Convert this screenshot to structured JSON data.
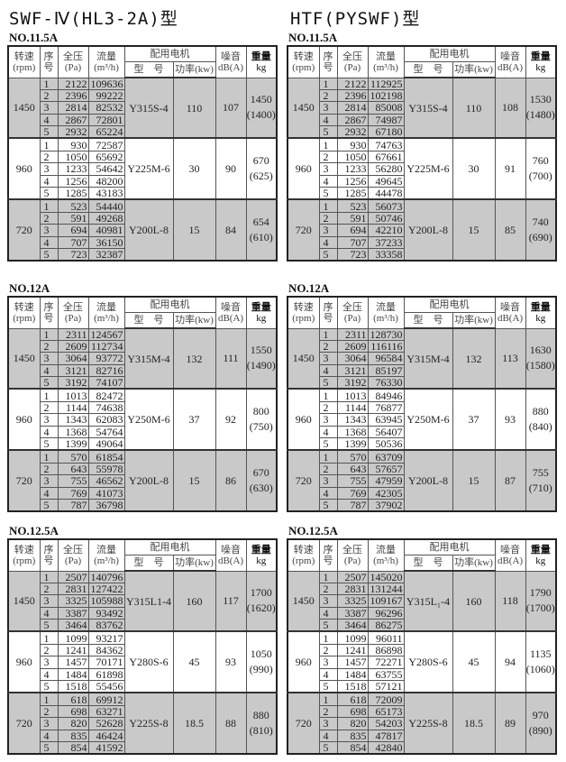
{
  "titles": [
    "SWF-Ⅳ(HL3-2A)型",
    "HTF(PYSWF)型"
  ],
  "header": {
    "speed": [
      "转速",
      "(rpm)"
    ],
    "seq": [
      "序",
      "号"
    ],
    "pressure": [
      "全压",
      "(Pa)"
    ],
    "flow": [
      "流量",
      "(m³/h)"
    ],
    "motor": "配用电机",
    "model": "型　号",
    "power": "功率(kw)",
    "noise": [
      "噪音",
      "dB(A)"
    ],
    "weight": [
      "重量",
      "kg"
    ]
  },
  "tables": [
    {
      "no": "NO.11.5A",
      "groups": [
        {
          "rpm": "1450",
          "model": "Y315S-4",
          "power": "110",
          "noise": "107",
          "weight": "1450",
          "weight_alt": "(1400)",
          "rows": [
            [
              "1",
              "2122",
              "109636"
            ],
            [
              "2",
              "2396",
              "99222"
            ],
            [
              "3",
              "2814",
              "82532"
            ],
            [
              "4",
              "2867",
              "72801"
            ],
            [
              "5",
              "2932",
              "65224"
            ]
          ]
        },
        {
          "rpm": "960",
          "model": "Y225M-6",
          "power": "30",
          "noise": "90",
          "weight": "670",
          "weight_alt": "(625)",
          "rows": [
            [
              "1",
              "930",
              "72587"
            ],
            [
              "2",
              "1050",
              "65692"
            ],
            [
              "3",
              "1233",
              "54642"
            ],
            [
              "4",
              "1256",
              "48200"
            ],
            [
              "5",
              "1285",
              "43183"
            ]
          ]
        },
        {
          "rpm": "720",
          "model": "Y200L-8",
          "power": "15",
          "noise": "84",
          "weight": "654",
          "weight_alt": "(610)",
          "rows": [
            [
              "1",
              "523",
              "54440"
            ],
            [
              "2",
              "591",
              "49268"
            ],
            [
              "3",
              "694",
              "40981"
            ],
            [
              "4",
              "707",
              "36150"
            ],
            [
              "5",
              "723",
              "32387"
            ]
          ]
        }
      ]
    },
    {
      "no": "NO.11.5A",
      "groups": [
        {
          "rpm": "1450",
          "model": "Y315S-4",
          "power": "110",
          "noise": "108",
          "weight": "1530",
          "weight_alt": "(1480)",
          "rows": [
            [
              "1",
              "2122",
              "112925"
            ],
            [
              "2",
              "2396",
              "102198"
            ],
            [
              "3",
              "2814",
              "85008"
            ],
            [
              "4",
              "2867",
              "74987"
            ],
            [
              "5",
              "2932",
              "67180"
            ]
          ]
        },
        {
          "rpm": "960",
          "model": "Y225M-6",
          "power": "30",
          "noise": "91",
          "weight": "760",
          "weight_alt": "(700)",
          "rows": [
            [
              "1",
              "930",
              "74763"
            ],
            [
              "2",
              "1050",
              "67661"
            ],
            [
              "3",
              "1233",
              "56280"
            ],
            [
              "4",
              "1256",
              "49645"
            ],
            [
              "5",
              "1285",
              "44478"
            ]
          ]
        },
        {
          "rpm": "720",
          "model": "Y200L-8",
          "power": "15",
          "noise": "85",
          "weight": "740",
          "weight_alt": "(690)",
          "rows": [
            [
              "1",
              "523",
              "56073"
            ],
            [
              "2",
              "591",
              "50746"
            ],
            [
              "3",
              "694",
              "42210"
            ],
            [
              "4",
              "707",
              "37233"
            ],
            [
              "5",
              "723",
              "33358"
            ]
          ]
        }
      ]
    },
    {
      "no": "NO.12A",
      "groups": [
        {
          "rpm": "1450",
          "model": "Y315M-4",
          "power": "132",
          "noise": "111",
          "weight": "1550",
          "weight_alt": "(1490)",
          "rows": [
            [
              "1",
              "2311",
              "124567"
            ],
            [
              "2",
              "2609",
              "112734"
            ],
            [
              "3",
              "3064",
              "93772"
            ],
            [
              "4",
              "3121",
              "82716"
            ],
            [
              "5",
              "3192",
              "74107"
            ]
          ]
        },
        {
          "rpm": "960",
          "model": "Y250M-6",
          "power": "37",
          "noise": "92",
          "weight": "800",
          "weight_alt": "(750)",
          "rows": [
            [
              "1",
              "1013",
              "82472"
            ],
            [
              "2",
              "1144",
              "74638"
            ],
            [
              "3",
              "1343",
              "62083"
            ],
            [
              "4",
              "1368",
              "54764"
            ],
            [
              "5",
              "1399",
              "49064"
            ]
          ]
        },
        {
          "rpm": "720",
          "model": "Y200L-8",
          "power": "15",
          "noise": "86",
          "weight": "670",
          "weight_alt": "(630)",
          "rows": [
            [
              "1",
              "570",
              "61854"
            ],
            [
              "2",
              "643",
              "55978"
            ],
            [
              "3",
              "755",
              "46562"
            ],
            [
              "4",
              "769",
              "41073"
            ],
            [
              "5",
              "787",
              "36798"
            ]
          ]
        }
      ]
    },
    {
      "no": "NO.12A",
      "groups": [
        {
          "rpm": "1450",
          "model": "Y315M-4",
          "power": "132",
          "noise": "113",
          "weight": "1630",
          "weight_alt": "(1580)",
          "rows": [
            [
              "1",
              "2311",
              "128730"
            ],
            [
              "2",
              "2609",
              "116116"
            ],
            [
              "3",
              "3064",
              "96584"
            ],
            [
              "4",
              "3121",
              "85197"
            ],
            [
              "5",
              "3192",
              "76330"
            ]
          ]
        },
        {
          "rpm": "960",
          "model": "Y250M-6",
          "power": "37",
          "noise": "93",
          "weight": "880",
          "weight_alt": "(840)",
          "rows": [
            [
              "1",
              "1013",
              "84946"
            ],
            [
              "2",
              "1144",
              "76877"
            ],
            [
              "3",
              "1343",
              "63945"
            ],
            [
              "4",
              "1368",
              "56407"
            ],
            [
              "5",
              "1399",
              "50536"
            ]
          ]
        },
        {
          "rpm": "720",
          "model": "Y200L-8",
          "power": "15",
          "noise": "87",
          "weight": "755",
          "weight_alt": "(710)",
          "rows": [
            [
              "1",
              "570",
              "63709"
            ],
            [
              "2",
              "643",
              "57657"
            ],
            [
              "3",
              "755",
              "47959"
            ],
            [
              "4",
              "769",
              "42305"
            ],
            [
              "5",
              "787",
              "37902"
            ]
          ]
        }
      ]
    },
    {
      "no": "NO.12.5A",
      "groups": [
        {
          "rpm": "1450",
          "model": "Y315L1-4",
          "power": "160",
          "noise": "117",
          "weight": "1700",
          "weight_alt": "(1620)",
          "rows": [
            [
              "1",
              "2507",
              "140796"
            ],
            [
              "2",
              "2831",
              "127422"
            ],
            [
              "3",
              "3325",
              "105988"
            ],
            [
              "4",
              "3387",
              "93492"
            ],
            [
              "5",
              "3464",
              "83762"
            ]
          ]
        },
        {
          "rpm": "960",
          "model": "Y280S-6",
          "power": "45",
          "noise": "93",
          "weight": "1050",
          "weight_alt": "(990)",
          "rows": [
            [
              "1",
              "1099",
              "93217"
            ],
            [
              "2",
              "1241",
              "84362"
            ],
            [
              "3",
              "1457",
              "70171"
            ],
            [
              "4",
              "1484",
              "61898"
            ],
            [
              "5",
              "1518",
              "55456"
            ]
          ]
        },
        {
          "rpm": "720",
          "model": "Y225S-8",
          "power": "18.5",
          "noise": "88",
          "weight": "880",
          "weight_alt": "(810)",
          "rows": [
            [
              "1",
              "618",
              "69912"
            ],
            [
              "2",
              "698",
              "63271"
            ],
            [
              "3",
              "820",
              "52628"
            ],
            [
              "4",
              "835",
              "46424"
            ],
            [
              "5",
              "854",
              "41592"
            ]
          ]
        }
      ]
    },
    {
      "no": "NO.12.5A",
      "groups": [
        {
          "rpm": "1450",
          "model": "Y315L₁-4",
          "power": "160",
          "noise": "118",
          "weight": "1790",
          "weight_alt": "(1700)",
          "rows": [
            [
              "1",
              "2507",
              "145020"
            ],
            [
              "2",
              "2831",
              "131244"
            ],
            [
              "3",
              "3325",
              "109167"
            ],
            [
              "4",
              "3387",
              "96296"
            ],
            [
              "5",
              "3464",
              "86275"
            ]
          ]
        },
        {
          "rpm": "960",
          "model": "Y280S-6",
          "power": "45",
          "noise": "94",
          "weight": "1135",
          "weight_alt": "(1060)",
          "rows": [
            [
              "1",
              "1099",
              "96011"
            ],
            [
              "2",
              "1241",
              "86898"
            ],
            [
              "3",
              "1457",
              "72271"
            ],
            [
              "4",
              "1484",
              "63755"
            ],
            [
              "5",
              "1518",
              "57121"
            ]
          ]
        },
        {
          "rpm": "720",
          "model": "Y225S-8",
          "power": "18.5",
          "noise": "89",
          "weight": "970",
          "weight_alt": "(890)",
          "rows": [
            [
              "1",
              "618",
              "72009"
            ],
            [
              "2",
              "698",
              "65173"
            ],
            [
              "3",
              "820",
              "54203"
            ],
            [
              "4",
              "835",
              "47817"
            ],
            [
              "5",
              "854",
              "42840"
            ]
          ]
        }
      ]
    }
  ]
}
